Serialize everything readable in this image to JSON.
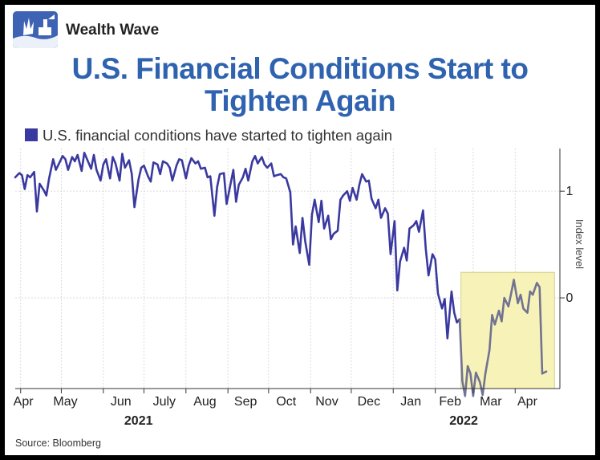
{
  "brand": {
    "name": "Wealth Wave",
    "logo_color": "#3f63b4"
  },
  "title": {
    "line1": "U.S. Financial Conditions Start to",
    "line2": "Tighten Again",
    "color": "#2f63b0"
  },
  "source": "Source: Bloomberg",
  "chart_data": {
    "type": "line",
    "title": "U.S. Financial Conditions Start to Tighten Again",
    "ylabel": "Index level",
    "ylim": [
      -0.85,
      1.4
    ],
    "yticks": [
      1,
      0
    ],
    "grid": true,
    "months": [
      "Apr",
      "May",
      "Jun",
      "July",
      "Aug",
      "Sep",
      "Oct",
      "Nov",
      "Dec",
      "Jan",
      "Feb",
      "Mar",
      "Apr"
    ],
    "years": [
      "2021",
      "2022"
    ],
    "highlight": {
      "start": "2022-02-20",
      "end": "2022-04-30",
      "y_range": [
        -0.85,
        0.24
      ],
      "color": "#f7f3b8"
    },
    "series": [
      {
        "name": "U.S. financial conditions have started to tighten again",
        "color": "#3a39a0",
        "highlight_color": "#727292",
        "x": [
          "2021-03-28",
          "2021-03-31",
          "2021-04-02",
          "2021-04-04",
          "2021-04-06",
          "2021-04-08",
          "2021-04-11",
          "2021-04-13",
          "2021-04-15",
          "2021-04-18",
          "2021-04-20",
          "2021-04-22",
          "2021-04-25",
          "2021-04-27",
          "2021-04-29",
          "2021-05-02",
          "2021-05-04",
          "2021-05-06",
          "2021-05-09",
          "2021-05-11",
          "2021-05-13",
          "2021-05-16",
          "2021-05-18",
          "2021-05-20",
          "2021-05-23",
          "2021-05-25",
          "2021-05-27",
          "2021-05-30",
          "2021-06-01",
          "2021-06-03",
          "2021-06-06",
          "2021-06-08",
          "2021-06-10",
          "2021-06-13",
          "2021-06-15",
          "2021-06-17",
          "2021-06-20",
          "2021-06-22",
          "2021-06-24",
          "2021-06-27",
          "2021-06-29",
          "2021-07-01",
          "2021-07-04",
          "2021-07-06",
          "2021-07-08",
          "2021-07-11",
          "2021-07-13",
          "2021-07-15",
          "2021-07-18",
          "2021-07-20",
          "2021-07-22",
          "2021-07-25",
          "2021-07-27",
          "2021-07-29",
          "2021-08-01",
          "2021-08-03",
          "2021-08-05",
          "2021-08-08",
          "2021-08-10",
          "2021-08-12",
          "2021-08-15",
          "2021-08-17",
          "2021-08-19",
          "2021-08-22",
          "2021-08-24",
          "2021-08-26",
          "2021-08-29",
          "2021-08-31",
          "2021-09-02",
          "2021-09-05",
          "2021-09-07",
          "2021-09-09",
          "2021-09-12",
          "2021-09-14",
          "2021-09-16",
          "2021-09-19",
          "2021-09-21",
          "2021-09-23",
          "2021-09-26",
          "2021-09-28",
          "2021-09-30",
          "2021-10-03",
          "2021-10-05",
          "2021-10-07",
          "2021-10-10",
          "2021-10-12",
          "2021-10-14",
          "2021-10-17",
          "2021-10-19",
          "2021-10-21",
          "2021-10-24",
          "2021-10-26",
          "2021-10-28",
          "2021-10-31",
          "2021-11-02",
          "2021-11-04",
          "2021-11-07",
          "2021-11-09",
          "2021-11-11",
          "2021-11-14",
          "2021-11-16",
          "2021-11-18",
          "2021-11-21",
          "2021-11-23",
          "2021-11-25",
          "2021-11-28",
          "2021-11-30",
          "2021-12-02",
          "2021-12-05",
          "2021-12-07",
          "2021-12-09",
          "2021-12-12",
          "2021-12-14",
          "2021-12-16",
          "2021-12-19",
          "2021-12-21",
          "2021-12-23",
          "2021-12-26",
          "2021-12-28",
          "2021-12-30",
          "2022-01-02",
          "2022-01-04",
          "2022-01-06",
          "2022-01-09",
          "2022-01-11",
          "2022-01-13",
          "2022-01-16",
          "2022-01-18",
          "2022-01-20",
          "2022-01-23",
          "2022-01-25",
          "2022-01-27",
          "2022-01-30",
          "2022-02-01",
          "2022-02-03",
          "2022-02-06",
          "2022-02-08",
          "2022-02-10",
          "2022-02-13",
          "2022-02-15",
          "2022-02-17",
          "2022-02-19",
          "2022-02-21",
          "2022-02-23",
          "2022-02-25",
          "2022-02-27",
          "2022-03-01",
          "2022-03-03",
          "2022-03-06",
          "2022-03-08",
          "2022-03-10",
          "2022-03-13",
          "2022-03-15",
          "2022-03-17",
          "2022-03-20",
          "2022-03-22",
          "2022-03-24",
          "2022-03-27",
          "2022-03-29",
          "2022-03-31",
          "2022-04-03",
          "2022-04-05",
          "2022-04-07",
          "2022-04-10",
          "2022-04-12",
          "2022-04-14",
          "2022-04-17",
          "2022-04-19",
          "2022-04-21",
          "2022-04-24"
        ],
        "y": [
          1.13,
          1.17,
          1.15,
          1.02,
          1.15,
          1.13,
          1.18,
          0.81,
          1.07,
          1.01,
          0.96,
          1.12,
          1.3,
          1.2,
          1.25,
          1.33,
          1.3,
          1.2,
          1.32,
          1.28,
          1.34,
          1.19,
          1.36,
          1.3,
          1.21,
          1.34,
          1.2,
          1.1,
          1.25,
          1.3,
          1.12,
          1.32,
          1.26,
          1.1,
          1.35,
          1.22,
          1.29,
          1.16,
          0.85,
          1.11,
          1.22,
          1.24,
          1.14,
          1.09,
          1.27,
          1.25,
          1.16,
          1.28,
          1.26,
          1.22,
          1.1,
          1.24,
          1.3,
          1.29,
          1.12,
          1.24,
          1.31,
          1.26,
          1.28,
          1.21,
          1.22,
          1.13,
          1.14,
          0.77,
          1.04,
          1.16,
          1.17,
          0.88,
          1.01,
          1.2,
          0.9,
          1.06,
          1.13,
          1.21,
          1.1,
          1.28,
          1.33,
          1.26,
          1.32,
          1.25,
          1.22,
          1.26,
          1.14,
          1.15,
          1.16,
          1.13,
          1.12,
          0.99,
          0.5,
          0.67,
          0.42,
          0.75,
          0.53,
          0.31,
          0.78,
          0.92,
          0.71,
          0.91,
          0.65,
          0.77,
          0.55,
          0.6,
          0.63,
          0.92,
          0.96,
          1.0,
          0.91,
          1.03,
          0.92,
          1.06,
          1.16,
          1.09,
          1.1,
          0.93,
          0.84,
          0.92,
          0.75,
          0.84,
          0.79,
          0.41,
          0.72,
          0.07,
          0.34,
          0.47,
          0.35,
          0.65,
          0.68,
          0.72,
          0.62,
          0.82,
          0.46,
          0.21,
          0.41,
          0.36,
          0.04,
          -0.1,
          -0.01,
          -0.38,
          0.06,
          -0.14,
          -0.23,
          -0.2,
          -0.78,
          -0.92,
          -0.64,
          -0.71,
          -0.92,
          -0.7,
          -0.79,
          -0.91,
          -0.71,
          -0.49,
          -0.16,
          -0.25,
          -0.12,
          -0.22,
          0.0,
          -0.08,
          0.04,
          0.17,
          -0.05,
          0.03,
          -0.1,
          -0.14,
          0.06,
          0.03,
          0.14,
          0.1,
          -0.71,
          -0.69
        ]
      }
    ]
  }
}
